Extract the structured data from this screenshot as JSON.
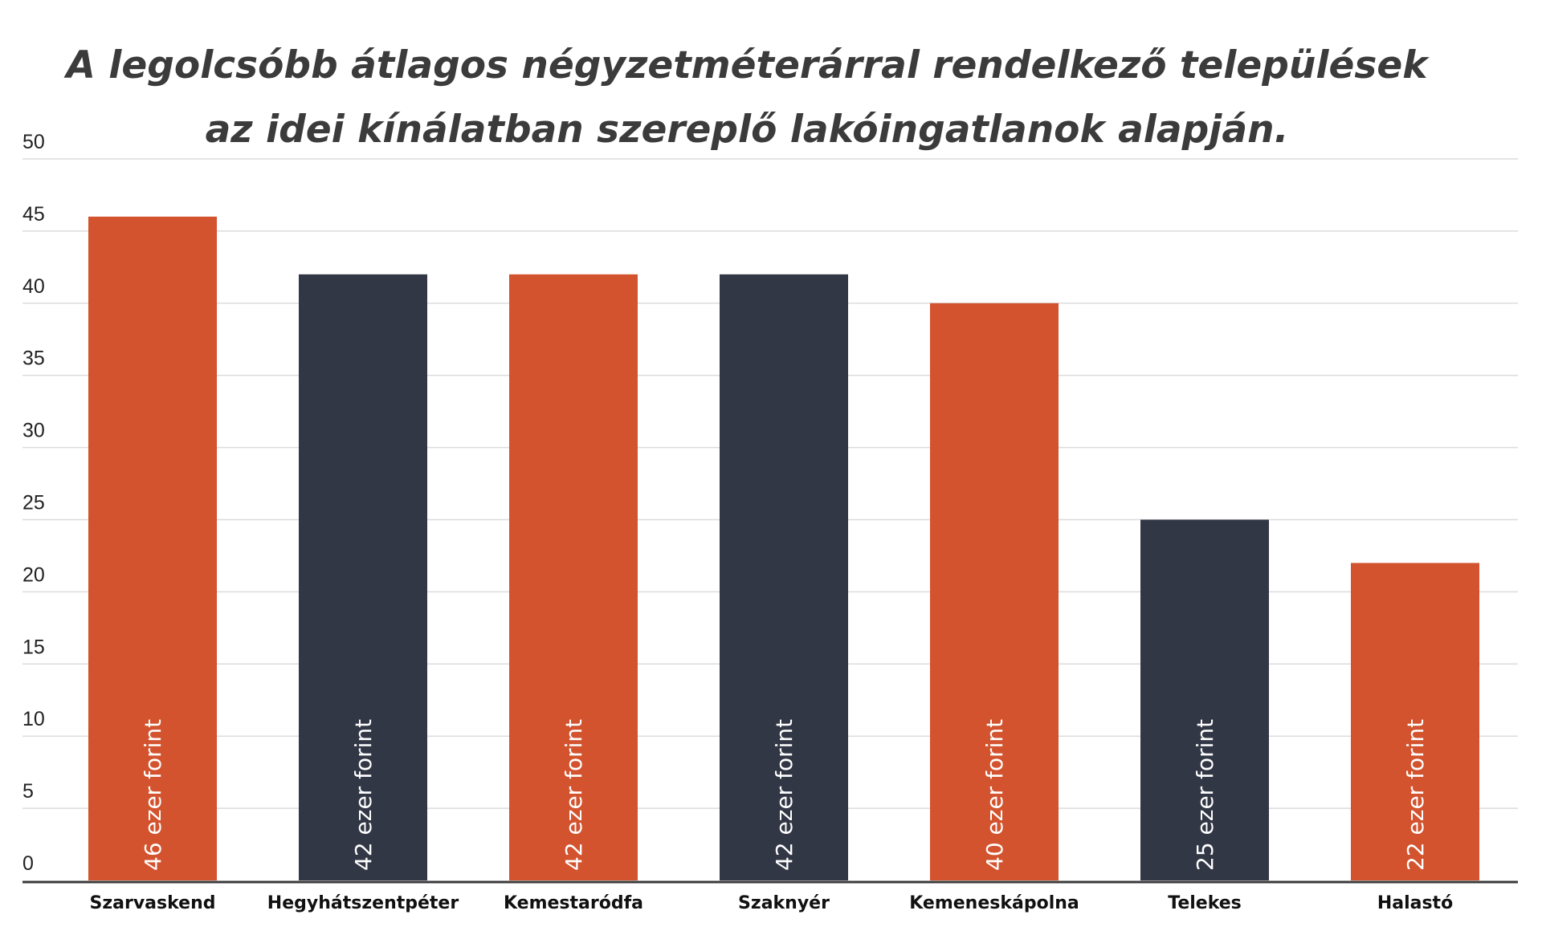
{
  "chart_data": {
    "type": "bar",
    "title": "A legolcsóbb átlagos négyzetméterárral rendelkező települések az idei kínálatban szereplő lakóingatlanok alapján.",
    "categories": [
      "Szarvaskend",
      "Hegyhátszentpéter",
      "Kemestaródfa",
      "Szaknyér",
      "Kemeneskápolna",
      "Telekes",
      "Halastó"
    ],
    "values": [
      46,
      42,
      42,
      42,
      40,
      25,
      22
    ],
    "data_labels": [
      "46 ezer forint",
      "42 ezer forint",
      "42 ezer forint",
      "42 ezer forint",
      "40 ezer forint",
      "25 ezer forint",
      "22 ezer forint"
    ],
    "bar_colors": [
      "#d2532e",
      "#323746",
      "#d2532e",
      "#323746",
      "#d2532e",
      "#323746",
      "#d2532e"
    ],
    "yticks": [
      0,
      5,
      10,
      15,
      20,
      25,
      30,
      35,
      40,
      45,
      50
    ],
    "ylim": [
      0,
      50
    ],
    "grid": true,
    "xlabel": "",
    "ylabel": ""
  }
}
